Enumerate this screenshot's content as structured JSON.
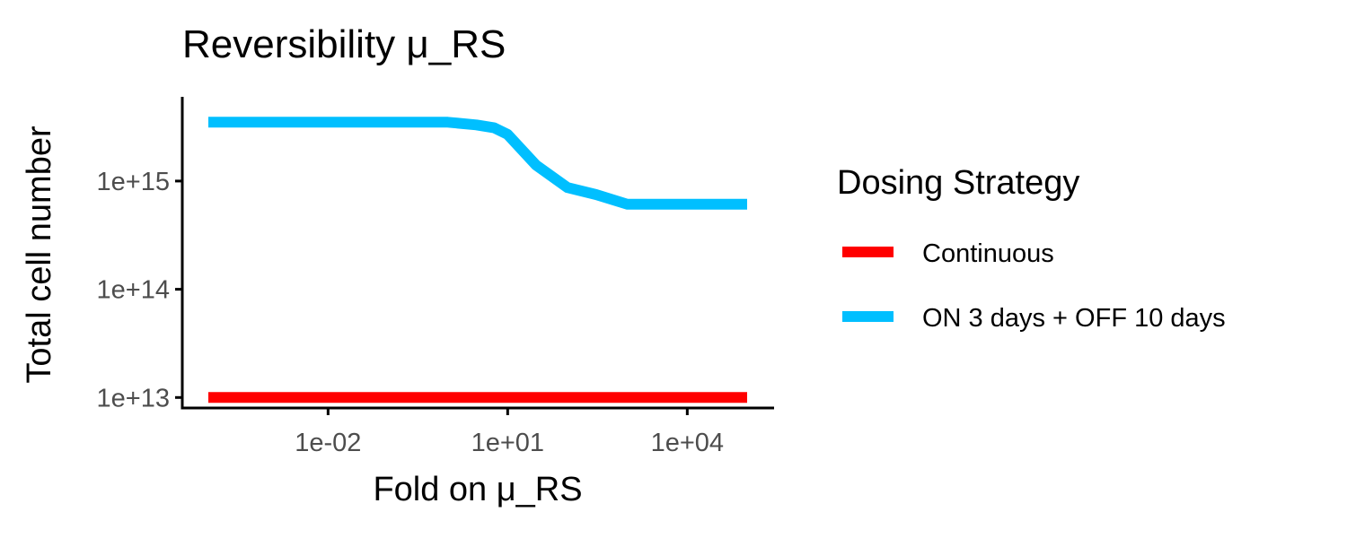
{
  "chart_data": {
    "type": "line",
    "title": "Reversibility  μ_RS",
    "xlabel": "Fold on  μ_RS",
    "ylabel": "Total cell number",
    "x_scale": "log10",
    "y_scale": "log10",
    "xlim": [
      0.0001,
      100000
    ],
    "ylim": [
      8000000000000.0,
      6000000000000000.0
    ],
    "x_ticks": [
      {
        "value": 0.01,
        "label": "1e-02"
      },
      {
        "value": 10,
        "label": "1e+01"
      },
      {
        "value": 10000,
        "label": "1e+04"
      }
    ],
    "y_ticks": [
      {
        "value": 10000000000000.0,
        "label": "1e+13"
      },
      {
        "value": 100000000000000.0,
        "label": "1e+14"
      },
      {
        "value": 1000000000000000.0,
        "label": "1e+15"
      }
    ],
    "grid": false,
    "legend": {
      "title": "Dosing Strategy",
      "position": "right"
    },
    "series": [
      {
        "name": "Continuous",
        "color": "#ff0000",
        "points": [
          {
            "x": 0.0001,
            "y": 10000000000000.0
          },
          {
            "x": 100000,
            "y": 10000000000000.0
          }
        ]
      },
      {
        "name": "ON 3 days + OFF 10 days",
        "color": "#00bfff",
        "points": [
          {
            "x": 0.0001,
            "y": 3500000000000000.0
          },
          {
            "x": 0.01,
            "y": 3500000000000000.0
          },
          {
            "x": 1,
            "y": 3500000000000000.0
          },
          {
            "x": 3,
            "y": 3300000000000000.0
          },
          {
            "x": 6,
            "y": 3100000000000000.0
          },
          {
            "x": 10,
            "y": 2700000000000000.0
          },
          {
            "x": 30,
            "y": 1400000000000000.0
          },
          {
            "x": 100,
            "y": 870000000000000.0
          },
          {
            "x": 300,
            "y": 750000000000000.0
          },
          {
            "x": 1000,
            "y": 610000000000000.0
          },
          {
            "x": 10000,
            "y": 610000000000000.0
          },
          {
            "x": 100000,
            "y": 610000000000000.0
          }
        ]
      }
    ]
  }
}
